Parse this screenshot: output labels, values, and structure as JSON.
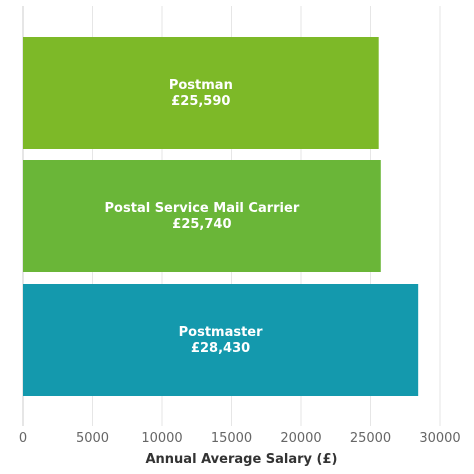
{
  "chart_data": {
    "type": "bar",
    "orientation": "horizontal",
    "categories": [
      "Postman",
      "Postal Service Mail Carrier",
      "Postmaster"
    ],
    "values": [
      25590,
      25740,
      28430
    ],
    "value_labels": [
      "£25,590",
      "£25,740",
      "£28,430"
    ],
    "colors": [
      "#7db928",
      "#6ab638",
      "#1499ad"
    ],
    "xlabel": "Annual Average Salary (£)",
    "ylabel": "",
    "xlim": [
      0,
      30000
    ],
    "xticks": [
      0,
      5000,
      10000,
      15000,
      20000,
      25000,
      30000
    ],
    "grid": true,
    "legend": "none"
  }
}
